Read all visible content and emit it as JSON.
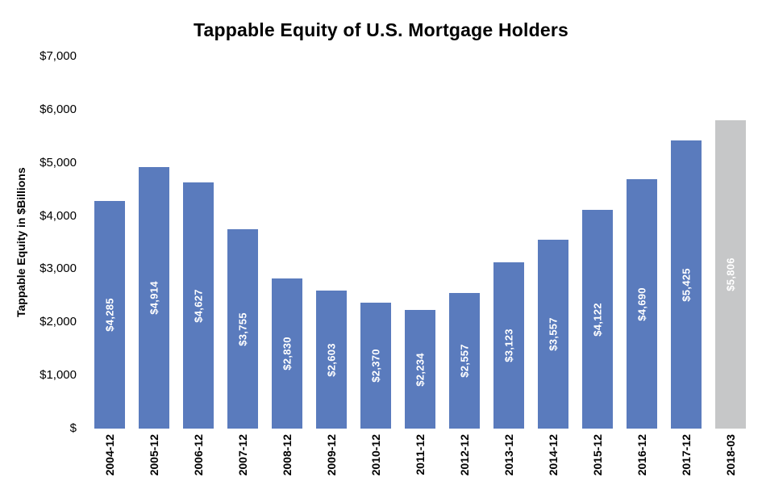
{
  "chart_data": {
    "type": "bar",
    "title": "Tappable Equity of U.S. Mortgage Holders",
    "xlabel": "",
    "ylabel": "Tappable Equity in $Billions",
    "categories": [
      "2004-12",
      "2005-12",
      "2006-12",
      "2007-12",
      "2008-12",
      "2009-12",
      "2010-12",
      "2011-12",
      "2012-12",
      "2013-12",
      "2014-12",
      "2015-12",
      "2016-12",
      "2017-12",
      "2018-03"
    ],
    "values": [
      4285,
      4914,
      4627,
      3755,
      2830,
      2603,
      2370,
      2234,
      2557,
      3123,
      3557,
      4122,
      4690,
      5425,
      5806
    ],
    "value_labels": [
      "$4,285",
      "$4,914",
      "$4,627",
      "$3,755",
      "$2,830",
      "$2,603",
      "$2,370",
      "$2,234",
      "$2,557",
      "$3,123",
      "$3,557",
      "$4,122",
      "$4,690",
      "$5,425",
      "$5,806"
    ],
    "highlight_index": 14,
    "y_ticks": [
      {
        "value": 7000,
        "label": "$7,000"
      },
      {
        "value": 6000,
        "label": "$6,000"
      },
      {
        "value": 5000,
        "label": "$5,000"
      },
      {
        "value": 4000,
        "label": "$4,000"
      },
      {
        "value": 3000,
        "label": "$3,000"
      },
      {
        "value": 2000,
        "label": "$2,000"
      },
      {
        "value": 1000,
        "label": "$1,000"
      },
      {
        "value": 0,
        "label": "$"
      }
    ],
    "ylim": [
      0,
      7000
    ],
    "grid": false,
    "legend": null,
    "colors": {
      "bar": "#5a7bbd",
      "highlight_bar": "#c6c7c8",
      "value_label_text": "#ffffff",
      "axis_text": "#000000",
      "background": "#ffffff"
    }
  }
}
